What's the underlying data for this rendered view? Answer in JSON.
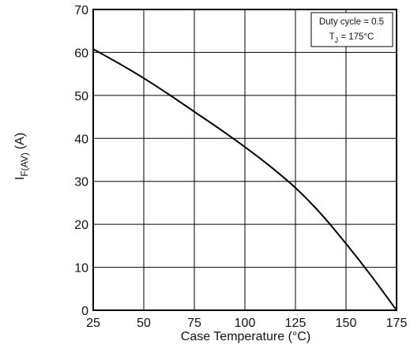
{
  "chart_data": {
    "type": "line",
    "title": "",
    "xlabel": "Case Temperature (°C)",
    "ylabel": {
      "main": "I",
      "subscript": "F(AV)",
      "unit": "(A)"
    },
    "xlim": [
      25,
      175
    ],
    "ylim": [
      0,
      70
    ],
    "x_ticks": [
      25,
      50,
      75,
      100,
      125,
      150,
      175
    ],
    "y_ticks": [
      0,
      10,
      20,
      30,
      40,
      50,
      60,
      70
    ],
    "grid": true,
    "legend": {
      "position": "top-right",
      "line1": "Duty cycle = 0.5",
      "line2_main": "T",
      "line2_sub": "J",
      "line2_rest": " = 175°C"
    },
    "series": [
      {
        "x": [
          25,
          37.5,
          50,
          62.5,
          75,
          87.5,
          100,
          112.5,
          125,
          137.5,
          150,
          162.5,
          175
        ],
        "y": [
          60.8,
          57.5,
          54,
          50.2,
          46.2,
          42.2,
          38,
          33.5,
          28.5,
          22.5,
          15.5,
          8,
          0
        ],
        "color": "#000000"
      }
    ]
  }
}
